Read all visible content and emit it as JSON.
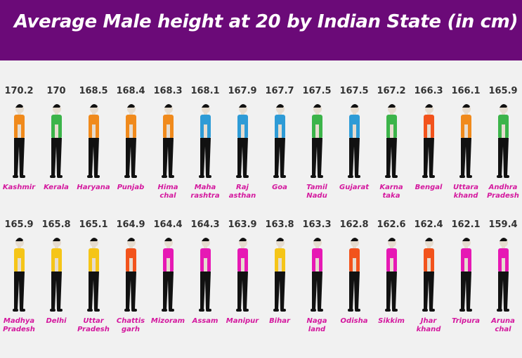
{
  "chart_data": {
    "type": "pictogram",
    "title": "Average Male height at 20 by Indian State (in cm)",
    "categories": [
      "Kashmir",
      "Kerala",
      "Haryana",
      "Punjab",
      "Hima\nchal",
      "Maha\nrashtra",
      "Raj\nasthan",
      "Goa",
      "Tamil\nNadu",
      "Gujarat",
      "Karna\ntaka",
      "Bengal",
      "Uttara\nkhand",
      "Andhra\nPradesh",
      "Madhya\nPradesh",
      "Delhi",
      "Uttar\nPradesh",
      "Chattis\ngarh",
      "Mizoram",
      "Assam",
      "Manipur",
      "Bihar",
      "Naga\nland",
      "Odisha",
      "Sikkim",
      "Jhar\nkhand",
      "Tripura",
      "Aruna\nchal"
    ],
    "values": [
      170.2,
      170,
      168.5,
      168.4,
      168.3,
      168.1,
      167.9,
      167.7,
      167.5,
      167.5,
      167.2,
      166.3,
      166.1,
      165.9,
      165.9,
      165.8,
      165.1,
      164.9,
      164.4,
      164.3,
      163.9,
      163.8,
      163.3,
      162.8,
      162.6,
      162.4,
      162.1,
      159.4
    ],
    "colors": [
      "#f08a1c",
      "#3cb44a",
      "#f08a1c",
      "#f08a1c",
      "#f08a1c",
      "#2e9bd6",
      "#2e9bd6",
      "#2e9bd6",
      "#3cb44a",
      "#2e9bd6",
      "#3cb44a",
      "#f2531c",
      "#f08a1c",
      "#3cb44a",
      "#f5c518",
      "#f5c518",
      "#f5c518",
      "#f2531c",
      "#e619b4",
      "#e619b4",
      "#e619b4",
      "#f5c518",
      "#e619b4",
      "#f2531c",
      "#e619b4",
      "#f2531c",
      "#e619b4",
      "#e619b4"
    ]
  }
}
